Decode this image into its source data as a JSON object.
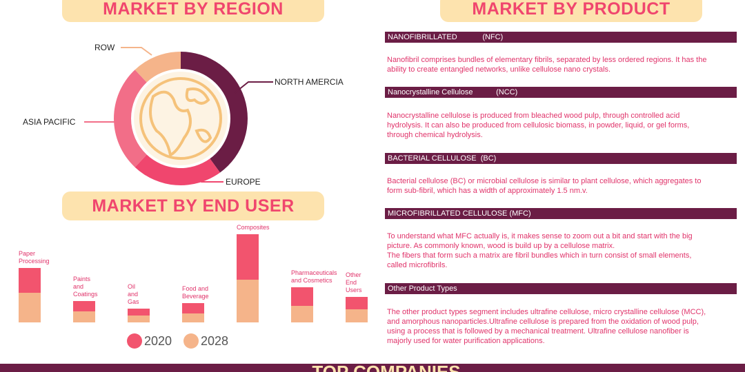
{
  "sections": {
    "region": "MARKET BY REGION",
    "product": "MARKET BY PRODUCT",
    "end_user": "MARKET BY END USER",
    "companies": "TOP COMPANIES"
  },
  "chart_data": [
    {
      "type": "donut",
      "categories": [
        "NORTH AMERCIA",
        "EUROPE",
        "ASIA PACIFIC",
        "ROW"
      ],
      "values": [
        40,
        22,
        26,
        12
      ],
      "colors": [
        "#6b1d45",
        "#f0466e",
        "#f26e88",
        "#f5b48a"
      ]
    },
    {
      "type": "bar",
      "stacked": true,
      "categories": [
        "Paper Processing",
        "Paints and Coatings",
        "Oil and Gas",
        "Food and Beverage",
        "Composites",
        "Pharmaceuticals and Cosmetics",
        "Other End Users"
      ],
      "series": [
        {
          "name": "2020",
          "color": "#f2546e",
          "values": [
            36,
            15,
            10,
            15,
            66,
            27,
            18
          ]
        },
        {
          "name": "2028",
          "color": "#f5b48a",
          "values": [
            43,
            16,
            10,
            13,
            62,
            24,
            19
          ]
        }
      ],
      "ylim": [
        0,
        130
      ]
    }
  ],
  "products": [
    {
      "title": "NANOFIBRILLATED            (NFC)",
      "text": "Nanofibril comprises bundles of elementary fibrils, separated by less ordered regions. It has the ability to create entangled networks, unlike cellulose nano crystals."
    },
    {
      "title": "Nanocrystalline Cellulose           (NCC)",
      "text": "Nanocrystalline cellulose is produced from bleached wood pulp, through controlled acid hydrolysis. It can also be produced from cellulosic biomass, in powder, liquid, or gel forms, through chemical hydrolysis."
    },
    {
      "title": "BACTERIAL CELLULOSE  (BC)",
      "text": "Bacterial cellulose (BC) or microbial cellulose is similar to plant cellulose, which aggregates to form sub-fibril, which has a width of approximately 1.5 nm.v."
    },
    {
      "title": "MICROFIBRILLATED CELLULOSE (MFC)",
      "text": "To understand what MFC actually is, it makes sense to zoom out a bit and start with the big picture. As commonly known, wood is build up by a cellulose matrix.\nThe fibers that form such a matrix are fibril bundles which in turn consist of small elements, called microfibrils."
    },
    {
      "title": "Other Product Types",
      "text": "The other product types segment includes ultrafine cellulose, micro crystalline cellulose (MCC), and amorphous nanoparticles.Ultrafine cellulose is prepared from the oxidation of wood pulp, using a process that is followed by a mechanical treatment. Ultrafine cellulose nanofiber is majorly used for water purification applications."
    }
  ]
}
